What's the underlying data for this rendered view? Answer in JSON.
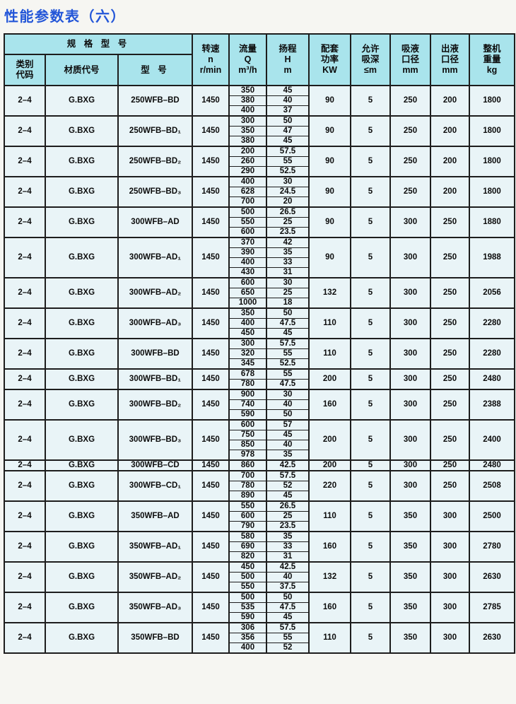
{
  "title": "性能参数表（六）",
  "table": {
    "header": {
      "spec_group": "规 格 型 号",
      "category": [
        "类别",
        "代码"
      ],
      "material": "材质代号",
      "model": "型  号",
      "speed": [
        "转速",
        "n",
        "r/min"
      ],
      "flow": [
        "流量",
        "Q",
        "m³/h"
      ],
      "head": [
        "扬程",
        "H",
        "m"
      ],
      "power": [
        "配套",
        "功率",
        "KW"
      ],
      "suction_depth": [
        "允许",
        "吸深",
        "≤m"
      ],
      "inlet": [
        "吸液",
        "口径",
        "mm"
      ],
      "outlet": [
        "出液",
        "口径",
        "mm"
      ],
      "weight": [
        "整机",
        "重量",
        "kg"
      ]
    },
    "rows": [
      {
        "category": "2–4",
        "material": "G.BXG",
        "model": "250WFB–BD",
        "speed": "1450",
        "qh": [
          [
            "350",
            "45"
          ],
          [
            "380",
            "40"
          ],
          [
            "400",
            "37"
          ]
        ],
        "power": "90",
        "suction_depth": "5",
        "inlet": "250",
        "outlet": "200",
        "weight": "1800"
      },
      {
        "category": "2–4",
        "material": "G.BXG",
        "model": "250WFB–BD₁",
        "speed": "1450",
        "qh": [
          [
            "300",
            "50"
          ],
          [
            "350",
            "47"
          ],
          [
            "380",
            "45"
          ]
        ],
        "power": "90",
        "suction_depth": "5",
        "inlet": "250",
        "outlet": "200",
        "weight": "1800"
      },
      {
        "category": "2–4",
        "material": "G.BXG",
        "model": "250WFB–BD₂",
        "speed": "1450",
        "qh": [
          [
            "200",
            "57.5"
          ],
          [
            "260",
            "55"
          ],
          [
            "290",
            "52.5"
          ]
        ],
        "power": "90",
        "suction_depth": "5",
        "inlet": "250",
        "outlet": "200",
        "weight": "1800"
      },
      {
        "category": "2–4",
        "material": "G.BXG",
        "model": "250WFB–BD₃",
        "speed": "1450",
        "qh": [
          [
            "400",
            "30"
          ],
          [
            "628",
            "24.5"
          ],
          [
            "700",
            "20"
          ]
        ],
        "power": "90",
        "suction_depth": "5",
        "inlet": "250",
        "outlet": "200",
        "weight": "1800"
      },
      {
        "category": "2–4",
        "material": "G.BXG",
        "model": "300WFB–AD",
        "speed": "1450",
        "qh": [
          [
            "500",
            "26.5"
          ],
          [
            "550",
            "25"
          ],
          [
            "600",
            "23.5"
          ]
        ],
        "power": "90",
        "suction_depth": "5",
        "inlet": "300",
        "outlet": "250",
        "weight": "1880"
      },
      {
        "category": "2–4",
        "material": "G.BXG",
        "model": "300WFB–AD₁",
        "speed": "1450",
        "qh": [
          [
            "370",
            "42"
          ],
          [
            "390",
            "35"
          ],
          [
            "400",
            "33"
          ],
          [
            "430",
            "31"
          ]
        ],
        "power": "90",
        "suction_depth": "5",
        "inlet": "300",
        "outlet": "250",
        "weight": "1988"
      },
      {
        "category": "2–4",
        "material": "G.BXG",
        "model": "300WFB–AD₂",
        "speed": "1450",
        "qh": [
          [
            "600",
            "30"
          ],
          [
            "650",
            "25"
          ],
          [
            "1000",
            "18"
          ]
        ],
        "power": "132",
        "suction_depth": "5",
        "inlet": "300",
        "outlet": "250",
        "weight": "2056"
      },
      {
        "category": "2–4",
        "material": "G.BXG",
        "model": "300WFB–AD₃",
        "speed": "1450",
        "qh": [
          [
            "350",
            "50"
          ],
          [
            "400",
            "47.5"
          ],
          [
            "450",
            "45"
          ]
        ],
        "power": "110",
        "suction_depth": "5",
        "inlet": "300",
        "outlet": "250",
        "weight": "2280"
      },
      {
        "category": "2–4",
        "material": "G.BXG",
        "model": "300WFB–BD",
        "speed": "1450",
        "qh": [
          [
            "300",
            "57.5"
          ],
          [
            "320",
            "55"
          ],
          [
            "345",
            "52.5"
          ]
        ],
        "power": "110",
        "suction_depth": "5",
        "inlet": "300",
        "outlet": "250",
        "weight": "2280"
      },
      {
        "category": "2–4",
        "material": "G.BXG",
        "model": "300WFB–BD₁",
        "speed": "1450",
        "qh": [
          [
            "678",
            "55"
          ],
          [
            "780",
            "47.5"
          ]
        ],
        "power": "200",
        "suction_depth": "5",
        "inlet": "300",
        "outlet": "250",
        "weight": "2480"
      },
      {
        "category": "2–4",
        "material": "G.BXG",
        "model": "300WFB–BD₂",
        "speed": "1450",
        "qh": [
          [
            "900",
            "30"
          ],
          [
            "740",
            "40"
          ],
          [
            "590",
            "50"
          ]
        ],
        "power": "160",
        "suction_depth": "5",
        "inlet": "300",
        "outlet": "250",
        "weight": "2388"
      },
      {
        "category": "2–4",
        "material": "G.BXG",
        "model": "300WFB–BD₃",
        "speed": "1450",
        "qh": [
          [
            "600",
            "57"
          ],
          [
            "750",
            "45"
          ],
          [
            "850",
            "40"
          ],
          [
            "978",
            "35"
          ]
        ],
        "power": "200",
        "suction_depth": "5",
        "inlet": "300",
        "outlet": "250",
        "weight": "2400"
      },
      {
        "category": "2–4",
        "material": "G.BXG",
        "model": "300WFB–CD",
        "speed": "1450",
        "qh": [
          [
            "860",
            "42.5"
          ]
        ],
        "power": "200",
        "suction_depth": "5",
        "inlet": "300",
        "outlet": "250",
        "weight": "2480"
      },
      {
        "category": "2–4",
        "material": "G.BXG",
        "model": "300WFB–CD₁",
        "speed": "1450",
        "qh": [
          [
            "700",
            "57.5"
          ],
          [
            "780",
            "52"
          ],
          [
            "890",
            "45"
          ]
        ],
        "power": "220",
        "suction_depth": "5",
        "inlet": "300",
        "outlet": "250",
        "weight": "2508"
      },
      {
        "category": "2–4",
        "material": "G.BXG",
        "model": "350WFB–AD",
        "speed": "1450",
        "qh": [
          [
            "550",
            "26.5"
          ],
          [
            "600",
            "25"
          ],
          [
            "790",
            "23.5"
          ]
        ],
        "power": "110",
        "suction_depth": "5",
        "inlet": "350",
        "outlet": "300",
        "weight": "2500"
      },
      {
        "category": "2–4",
        "material": "G.BXG",
        "model": "350WFB–AD₁",
        "speed": "1450",
        "qh": [
          [
            "580",
            "35"
          ],
          [
            "690",
            "33"
          ],
          [
            "820",
            "31"
          ]
        ],
        "power": "160",
        "suction_depth": "5",
        "inlet": "350",
        "outlet": "300",
        "weight": "2780"
      },
      {
        "category": "2–4",
        "material": "G.BXG",
        "model": "350WFB–AD₂",
        "speed": "1450",
        "qh": [
          [
            "450",
            "42.5"
          ],
          [
            "500",
            "40"
          ],
          [
            "550",
            "37.5"
          ]
        ],
        "power": "132",
        "suction_depth": "5",
        "inlet": "350",
        "outlet": "300",
        "weight": "2630"
      },
      {
        "category": "2–4",
        "material": "G.BXG",
        "model": "350WFB–AD₃",
        "speed": "1450",
        "qh": [
          [
            "500",
            "50"
          ],
          [
            "535",
            "47.5"
          ],
          [
            "590",
            "45"
          ]
        ],
        "power": "160",
        "suction_depth": "5",
        "inlet": "350",
        "outlet": "300",
        "weight": "2785"
      },
      {
        "category": "2–4",
        "material": "G.BXG",
        "model": "350WFB–BD",
        "speed": "1450",
        "qh": [
          [
            "306",
            "57.5"
          ],
          [
            "356",
            "55"
          ],
          [
            "400",
            "52"
          ]
        ],
        "power": "110",
        "suction_depth": "5",
        "inlet": "350",
        "outlet": "300",
        "weight": "2630"
      }
    ]
  },
  "colors": {
    "title_blue": "#2356d8",
    "header_bg": "#a9e4ec",
    "cell_bg": "#e9f4f7",
    "border": "#1d1d1d"
  }
}
